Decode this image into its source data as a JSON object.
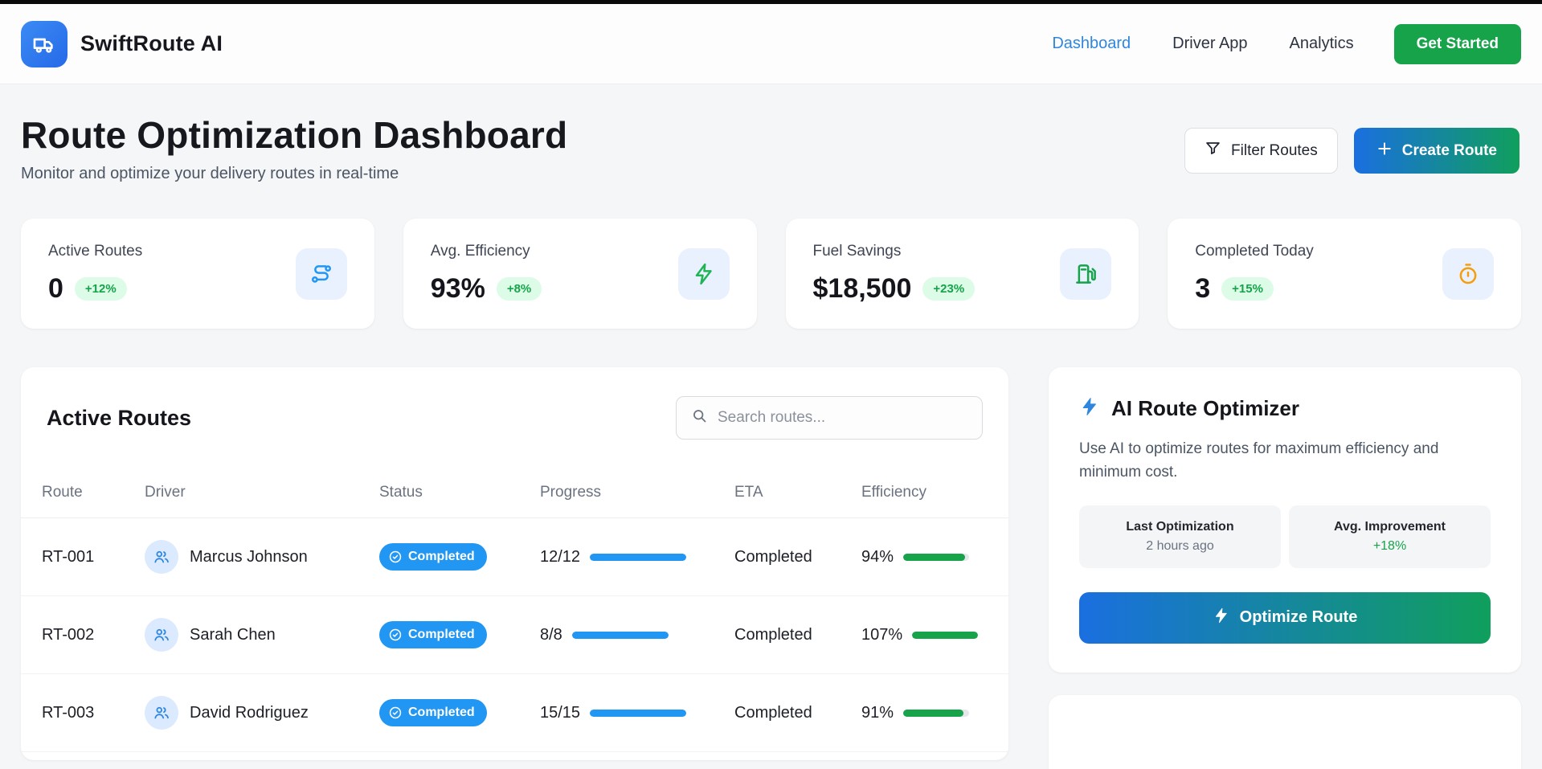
{
  "header": {
    "brand": "SwiftRoute AI",
    "nav": [
      {
        "label": "Dashboard",
        "active": true
      },
      {
        "label": "Driver App",
        "active": false
      },
      {
        "label": "Analytics",
        "active": false
      }
    ],
    "cta_label": "Get Started"
  },
  "page": {
    "title": "Route Optimization Dashboard",
    "subtitle": "Monitor and optimize your delivery routes in real-time",
    "filter_label": "Filter Routes",
    "create_label": "Create Route"
  },
  "stats": [
    {
      "label": "Active Routes",
      "value": "0",
      "delta": "+12%",
      "icon": "route-icon"
    },
    {
      "label": "Avg. Efficiency",
      "value": "93%",
      "delta": "+8%",
      "icon": "lightning-icon"
    },
    {
      "label": "Fuel Savings",
      "value": "$18,500",
      "delta": "+23%",
      "icon": "fuel-pump-icon"
    },
    {
      "label": "Completed Today",
      "value": "3",
      "delta": "+15%",
      "icon": "stopwatch-icon"
    }
  ],
  "routes_panel": {
    "title": "Active Routes",
    "search_placeholder": "Search routes...",
    "columns": [
      "Route",
      "Driver",
      "Status",
      "Progress",
      "ETA",
      "Efficiency"
    ],
    "rows": [
      {
        "route": "RT-001",
        "driver": "Marcus Johnson",
        "status": "Completed",
        "progress": "12/12",
        "progress_pct": 100,
        "eta": "Completed",
        "efficiency": "94%",
        "efficiency_pct": 94
      },
      {
        "route": "RT-002",
        "driver": "Sarah Chen",
        "status": "Completed",
        "progress": "8/8",
        "progress_pct": 100,
        "eta": "Completed",
        "efficiency": "107%",
        "efficiency_pct": 100
      },
      {
        "route": "RT-003",
        "driver": "David Rodriguez",
        "status": "Completed",
        "progress": "15/15",
        "progress_pct": 100,
        "eta": "Completed",
        "efficiency": "91%",
        "efficiency_pct": 91
      }
    ]
  },
  "optimizer": {
    "title": "AI Route Optimizer",
    "description": "Use AI to optimize routes for maximum efficiency and minimum cost.",
    "stats": [
      {
        "label": "Last Optimization",
        "value": "2 hours ago"
      },
      {
        "label": "Avg. Improvement",
        "value": "+18%"
      }
    ],
    "button_label": "Optimize Route"
  },
  "colors": {
    "accent_blue": "#2196f3",
    "nav_active_blue": "#2e86de",
    "accent_green": "#16a34a",
    "delta_badge_bg": "#dcfce7",
    "gradient_from": "#1a6fe0",
    "gradient_to": "#109f5c",
    "get_started_green": "#17a34a",
    "stopwatch_orange": "#f59e0b"
  }
}
